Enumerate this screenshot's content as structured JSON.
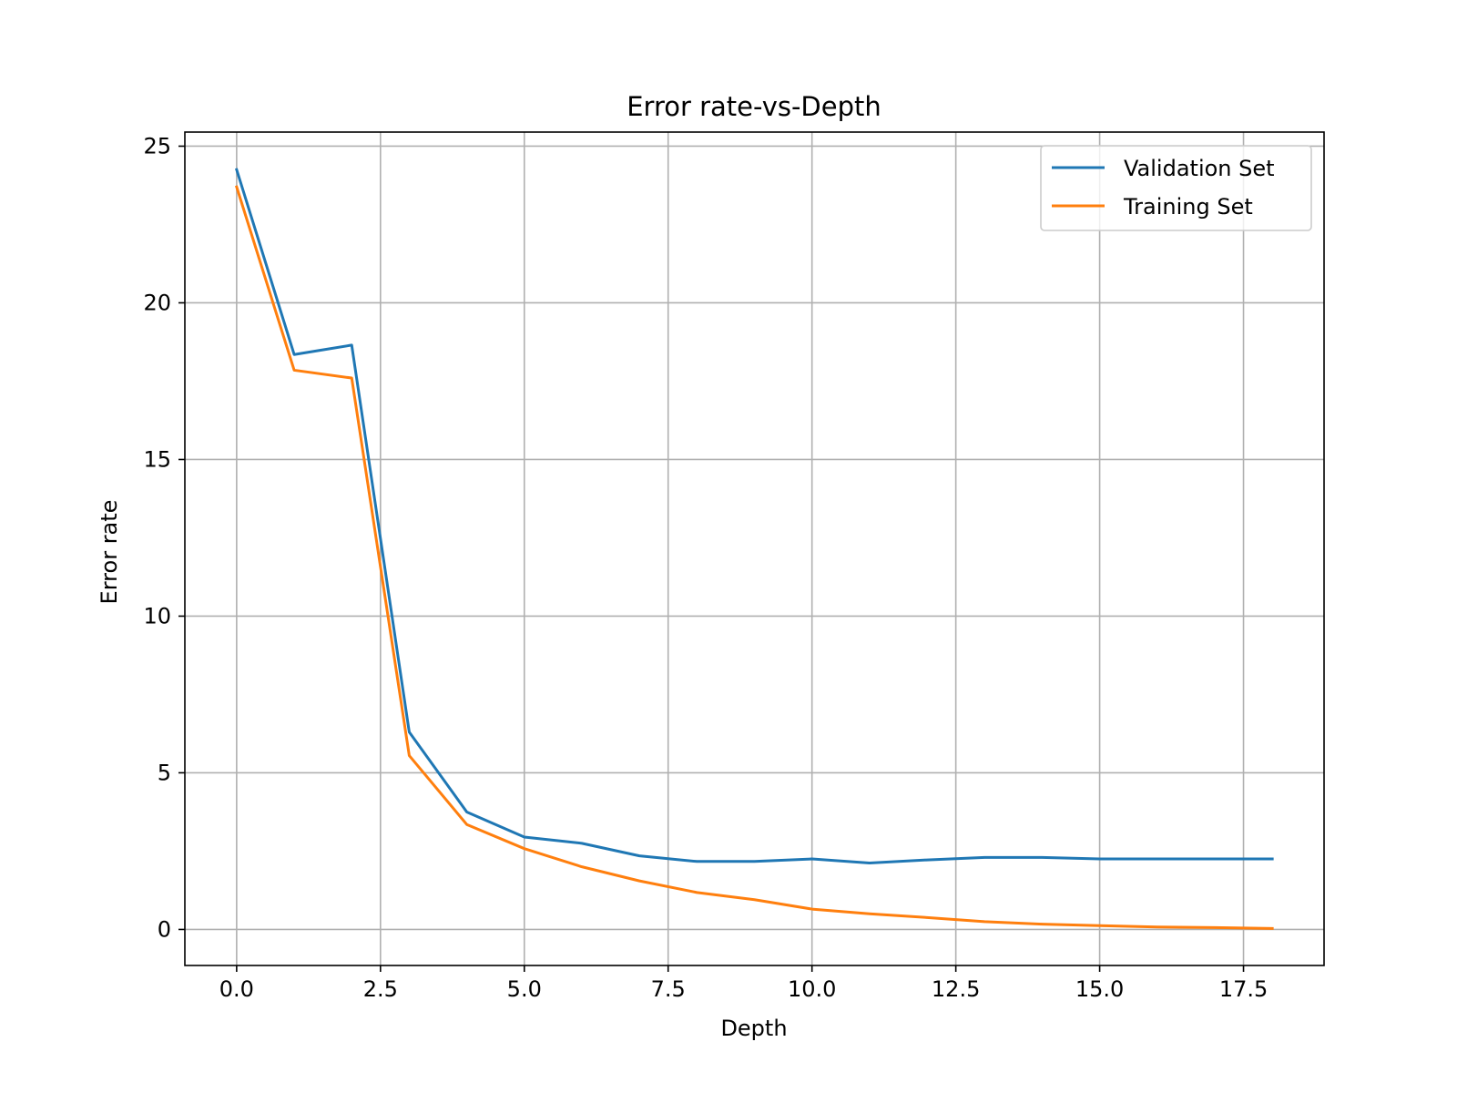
{
  "chart_data": {
    "type": "line",
    "title": "Error rate-vs-Depth",
    "xlabel": "Depth",
    "ylabel": "Error rate",
    "xlim": [
      -0.9,
      18.9
    ],
    "ylim": [
      -1.15,
      25.45
    ],
    "x_ticks": [
      0.0,
      2.5,
      5.0,
      7.5,
      10.0,
      12.5,
      15.0,
      17.5
    ],
    "x_tick_labels": [
      "0.0",
      "2.5",
      "5.0",
      "7.5",
      "10.0",
      "12.5",
      "15.0",
      "17.5"
    ],
    "y_ticks": [
      0,
      5,
      10,
      15,
      20,
      25
    ],
    "y_tick_labels": [
      "0",
      "5",
      "10",
      "15",
      "20",
      "25"
    ],
    "grid": true,
    "legend_position": "top-right",
    "x": [
      0,
      1,
      2,
      3,
      4,
      5,
      6,
      7,
      8,
      9,
      10,
      11,
      12,
      13,
      14,
      15,
      16,
      17,
      18
    ],
    "series": [
      {
        "name": "Validation Set",
        "color": "#1f77b4",
        "values": [
          24.25,
          18.35,
          18.65,
          6.3,
          3.75,
          2.95,
          2.75,
          2.35,
          2.17,
          2.17,
          2.25,
          2.12,
          2.22,
          2.3,
          2.3,
          2.25,
          2.25,
          2.25,
          2.25
        ]
      },
      {
        "name": "Training Set",
        "color": "#ff7f0e",
        "values": [
          23.7,
          17.85,
          17.6,
          5.55,
          3.35,
          2.58,
          2.0,
          1.55,
          1.18,
          0.95,
          0.65,
          0.5,
          0.38,
          0.25,
          0.17,
          0.12,
          0.08,
          0.06,
          0.03
        ]
      }
    ]
  }
}
